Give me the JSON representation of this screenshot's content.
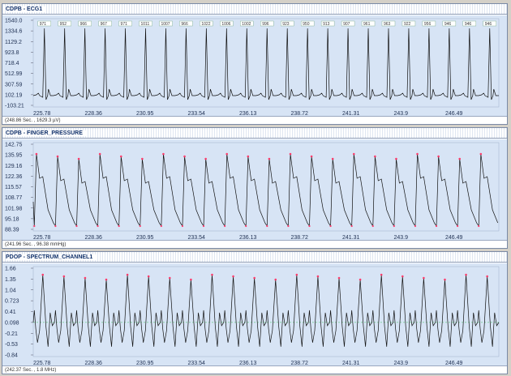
{
  "panes": [
    {
      "title": "CDPB - ECG1",
      "status": "(248.86 Sec. , 1629.3 µV)",
      "y_ticks": [
        "1540.0",
        "1334.6",
        "1129.2",
        "923.8",
        "718.4",
        "512.99",
        "307.59",
        "102.19",
        "-103.21"
      ],
      "x_ticks": [
        "225.78",
        "228.36",
        "230.95",
        "233.54",
        "236.13",
        "238.72",
        "241.31",
        "243.9",
        "246.49"
      ],
      "beat_labels": [
        "971",
        "952",
        "966",
        "967",
        "971",
        "1011",
        "1007",
        "966",
        "1022",
        "1006",
        "1002",
        "996",
        "923",
        "950",
        "913",
        "907",
        "961",
        "963",
        "922",
        "956",
        "946",
        "946",
        "946"
      ],
      "trace_color": "#111111"
    },
    {
      "title": "CDPB - FINGER_PRESSURE",
      "status": "(241.96 Sec. , 96.38 mmHg)",
      "y_ticks": [
        "142.75",
        "135.95",
        "129.16",
        "122.36",
        "115.57",
        "108.77",
        "101.98",
        "95.18",
        "88.39"
      ],
      "x_ticks": [
        "225.78",
        "228.36",
        "230.95",
        "233.54",
        "236.13",
        "238.72",
        "241.31",
        "243.9",
        "246.49"
      ],
      "trace_color": "#111111",
      "marker_color": "#ff3b6b"
    },
    {
      "title": "PDOP - SPECTRUM_CHANNEL1",
      "status": "(242.37 Sec. , 1.8 MHz)",
      "y_ticks": [
        "1.66",
        "1.35",
        "1.04",
        "0.723",
        "0.41",
        "0.098",
        "-0.21",
        "-0.53",
        "-0.84"
      ],
      "x_ticks": [
        "225.78",
        "228.36",
        "230.95",
        "233.54",
        "236.13",
        "238.72",
        "241.31",
        "243.9",
        "246.49"
      ],
      "trace_color": "#111111",
      "marker_color": "#ff3b6b",
      "baseline_color": "#3bbf5a"
    }
  ],
  "plot_background": "#d7e4f5"
}
